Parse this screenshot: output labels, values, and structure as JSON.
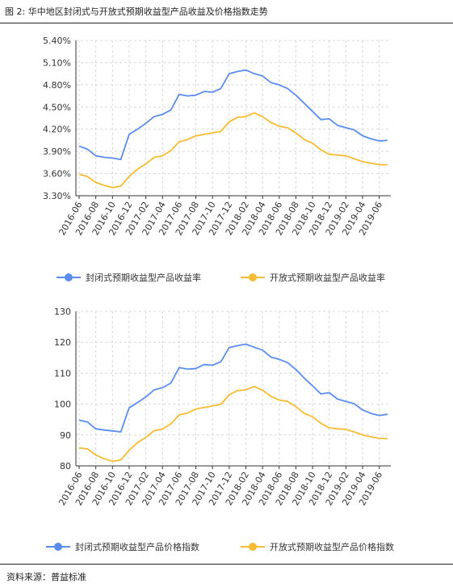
{
  "figure": {
    "title": "图 2: 华中地区封闭式与开放式预期收益型产品收益及价格指数走势",
    "source": "资料来源：普益标准"
  },
  "colors": {
    "closed": "#5b8def",
    "open": "#f6bc33",
    "grid": "#d8d8d8",
    "axis": "#333333"
  },
  "chart_data": [
    {
      "type": "line",
      "categories": [
        "2016-06",
        "2016-07",
        "2016-08",
        "2016-09",
        "2016-10",
        "2016-11",
        "2016-12",
        "2017-01",
        "2017-02",
        "2017-03",
        "2017-04",
        "2017-05",
        "2017-06",
        "2017-07",
        "2017-08",
        "2017-09",
        "2017-10",
        "2017-11",
        "2017-12",
        "2018-01",
        "2018-02",
        "2018-03",
        "2018-04",
        "2018-05",
        "2018-06",
        "2018-07",
        "2018-08",
        "2018-09",
        "2018-10",
        "2018-11",
        "2018-12",
        "2019-01",
        "2019-02",
        "2019-03",
        "2019-04",
        "2019-05",
        "2019-06",
        "2019-07"
      ],
      "tick_labels": [
        "2016-06",
        "2016-08",
        "2016-10",
        "2016-12",
        "2017-02",
        "2017-04",
        "2017-06",
        "2017-08",
        "2017-10",
        "2017-12",
        "2018-02",
        "2018-04",
        "2018-06",
        "2018-08",
        "2018-10",
        "2018-12",
        "2019-02",
        "2019-04",
        "2019-06"
      ],
      "y_ticks": [
        "3.30%",
        "3.60%",
        "3.90%",
        "4.20%",
        "4.50%",
        "4.80%",
        "5.10%",
        "5.40%"
      ],
      "ylim": [
        3.3,
        5.4
      ],
      "grid": true,
      "legend_placement": "bottom",
      "series": [
        {
          "name": "封闭式预期收益型产品收益率",
          "color_key": "closed",
          "values": [
            3.97,
            3.93,
            3.84,
            3.82,
            3.81,
            3.79,
            4.13,
            4.2,
            4.28,
            4.37,
            4.4,
            4.46,
            4.67,
            4.65,
            4.66,
            4.71,
            4.7,
            4.75,
            4.95,
            4.98,
            5.0,
            4.95,
            4.92,
            4.83,
            4.8,
            4.75,
            4.66,
            4.55,
            4.44,
            4.33,
            4.34,
            4.25,
            4.22,
            4.19,
            4.11,
            4.07,
            4.04,
            4.05
          ]
        },
        {
          "name": "开放式预期收益型产品收益率",
          "color_key": "open",
          "values": [
            3.59,
            3.56,
            3.48,
            3.44,
            3.41,
            3.43,
            3.56,
            3.66,
            3.73,
            3.82,
            3.84,
            3.91,
            4.03,
            4.06,
            4.11,
            4.13,
            4.15,
            4.17,
            4.3,
            4.36,
            4.37,
            4.42,
            4.37,
            4.29,
            4.24,
            4.22,
            4.15,
            4.06,
            4.01,
            3.92,
            3.86,
            3.85,
            3.84,
            3.8,
            3.76,
            3.74,
            3.72,
            3.72
          ]
        }
      ]
    },
    {
      "type": "line",
      "categories": [
        "2016-06",
        "2016-07",
        "2016-08",
        "2016-09",
        "2016-10",
        "2016-11",
        "2016-12",
        "2017-01",
        "2017-02",
        "2017-03",
        "2017-04",
        "2017-05",
        "2017-06",
        "2017-07",
        "2017-08",
        "2017-09",
        "2017-10",
        "2017-11",
        "2017-12",
        "2018-01",
        "2018-02",
        "2018-03",
        "2018-04",
        "2018-05",
        "2018-06",
        "2018-07",
        "2018-08",
        "2018-09",
        "2018-10",
        "2018-11",
        "2018-12",
        "2019-01",
        "2019-02",
        "2019-03",
        "2019-04",
        "2019-05",
        "2019-06",
        "2019-07"
      ],
      "tick_labels": [
        "2016-06",
        "2016-08",
        "2016-10",
        "2016-12",
        "2017-02",
        "2017-04",
        "2017-06",
        "2017-08",
        "2017-10",
        "2017-12",
        "2018-02",
        "2018-04",
        "2018-06",
        "2018-08",
        "2018-10",
        "2018-12",
        "2019-02",
        "2019-04",
        "2019-06"
      ],
      "y_ticks": [
        "80",
        "90",
        "100",
        "110",
        "120",
        "130"
      ],
      "ylim": [
        80,
        130
      ],
      "grid": true,
      "legend_placement": "bottom",
      "series": [
        {
          "name": "封闭式预期收益型产品价格指数",
          "color_key": "closed",
          "values": [
            94.8,
            94.2,
            92.0,
            91.6,
            91.3,
            91.0,
            98.8,
            100.5,
            102.3,
            104.6,
            105.3,
            106.8,
            111.8,
            111.3,
            111.5,
            112.8,
            112.6,
            113.7,
            118.3,
            118.9,
            119.4,
            118.4,
            117.5,
            115.2,
            114.5,
            113.4,
            111.2,
            108.4,
            105.9,
            103.3,
            103.7,
            101.6,
            100.9,
            100.1,
            98.1,
            97.0,
            96.3,
            96.7
          ]
        },
        {
          "name": "开放式预期收益型产品价格指数",
          "color_key": "open",
          "values": [
            85.8,
            85.5,
            83.5,
            82.3,
            81.5,
            81.9,
            85.0,
            87.5,
            89.2,
            91.4,
            91.9,
            93.6,
            96.5,
            97.1,
            98.4,
            98.9,
            99.4,
            99.9,
            103.0,
            104.4,
            104.6,
            105.7,
            104.5,
            102.5,
            101.3,
            100.9,
            99.2,
            97.0,
            95.9,
            93.8,
            92.3,
            92.0,
            91.8,
            91.0,
            90.0,
            89.4,
            88.9,
            88.8
          ]
        }
      ]
    }
  ]
}
